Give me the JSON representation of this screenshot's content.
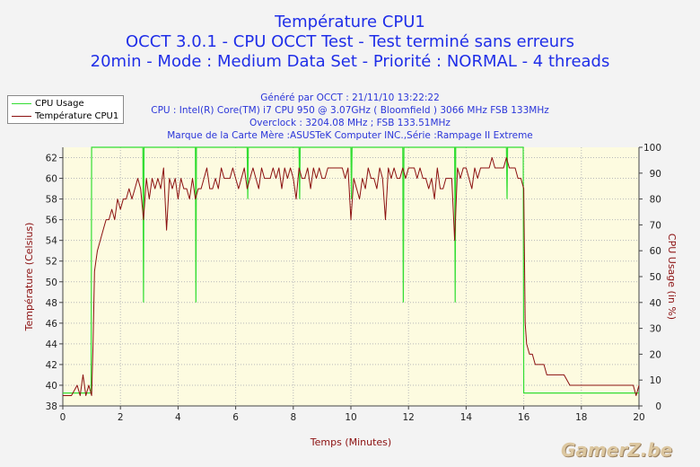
{
  "titles": {
    "line1": "Température CPU1",
    "line2": "OCCT 3.0.1 - CPU OCCT Test - Test terminé sans erreurs",
    "line3": "20min - Mode : Medium Data Set - Priorité : NORMAL - 4 threads"
  },
  "info": {
    "generated": "Généré par OCCT : 21/11/10 13:22:22",
    "cpu": "CPU : Intel(R) Core(TM) i7 CPU 950 @ 3.07GHz ( Bloomfield ) 3066 MHz FSB 133MHz",
    "overclock": "Overclock : 3204.08 MHz ; FSB 133.51MHz",
    "board": "Marque de la Carte Mère :ASUSTeK Computer INC.,Série :Rampage II Extreme"
  },
  "watermark": "GamerZ.be",
  "chart_data": {
    "type": "line",
    "xlabel": "Temps (Minutes)",
    "ylabel_left": "Température (Celsius)",
    "ylabel_right": "CPU Usage (in %)",
    "xlim": [
      0,
      20
    ],
    "ylim_left": [
      38,
      63
    ],
    "ylim_right": [
      0,
      100
    ],
    "x_ticks": [
      "0",
      "2",
      "4",
      "6",
      "8",
      "10",
      "12",
      "14",
      "16",
      "18",
      "20"
    ],
    "y_left_ticks": [
      "38",
      "40",
      "42",
      "44",
      "46",
      "48",
      "50",
      "52",
      "54",
      "56",
      "58",
      "60",
      "62"
    ],
    "y_right_ticks": [
      "0",
      "10",
      "20",
      "30",
      "40",
      "50",
      "60",
      "70",
      "80",
      "90",
      "100"
    ],
    "grid": true,
    "legend_position": "top-left",
    "colors": {
      "cpu_usage": "#33dd33",
      "temperature": "#8b1010"
    },
    "series": [
      {
        "name": "CPU Usage",
        "axis": "right",
        "x": [
          0,
          0.98,
          1.0,
          1.02,
          2.78,
          2.8,
          2.82,
          2.84,
          4.6,
          4.62,
          4.64,
          4.66,
          6.4,
          6.42,
          6.44,
          8.2,
          8.22,
          8.24,
          10.0,
          10.02,
          10.04,
          11.8,
          11.82,
          11.84,
          13.6,
          13.62,
          13.64,
          15.4,
          15.42,
          15.44,
          15.98,
          16.0,
          16.02,
          20.0
        ],
        "y": [
          5,
          5,
          100,
          100,
          100,
          40,
          100,
          100,
          100,
          40,
          100,
          100,
          100,
          80,
          100,
          100,
          80,
          100,
          100,
          80,
          100,
          100,
          40,
          100,
          100,
          40,
          100,
          100,
          80,
          100,
          100,
          5,
          5,
          5
        ]
      },
      {
        "name": "Température CPU1",
        "axis": "left",
        "x": [
          0,
          0.3,
          0.5,
          0.6,
          0.7,
          0.8,
          0.9,
          1.0,
          1.05,
          1.1,
          1.2,
          1.3,
          1.4,
          1.5,
          1.6,
          1.7,
          1.8,
          1.9,
          2.0,
          2.1,
          2.2,
          2.3,
          2.4,
          2.5,
          2.6,
          2.7,
          2.8,
          2.9,
          3.0,
          3.1,
          3.2,
          3.3,
          3.4,
          3.5,
          3.6,
          3.7,
          3.8,
          3.9,
          4.0,
          4.1,
          4.2,
          4.3,
          4.4,
          4.5,
          4.6,
          4.7,
          4.8,
          4.9,
          5.0,
          5.1,
          5.2,
          5.3,
          5.4,
          5.5,
          5.6,
          5.7,
          5.8,
          5.9,
          6.0,
          6.1,
          6.2,
          6.3,
          6.4,
          6.5,
          6.6,
          6.7,
          6.8,
          6.9,
          7.0,
          7.1,
          7.2,
          7.3,
          7.4,
          7.5,
          7.6,
          7.7,
          7.8,
          7.9,
          8.0,
          8.1,
          8.2,
          8.3,
          8.4,
          8.5,
          8.6,
          8.7,
          8.8,
          8.9,
          9.0,
          9.1,
          9.2,
          9.3,
          9.4,
          9.5,
          9.6,
          9.7,
          9.8,
          9.9,
          10.0,
          10.1,
          10.2,
          10.3,
          10.4,
          10.5,
          10.6,
          10.7,
          10.8,
          10.9,
          11.0,
          11.1,
          11.2,
          11.3,
          11.4,
          11.5,
          11.6,
          11.7,
          11.8,
          11.9,
          12.0,
          12.1,
          12.2,
          12.3,
          12.4,
          12.5,
          12.6,
          12.7,
          12.8,
          12.9,
          13.0,
          13.1,
          13.2,
          13.3,
          13.4,
          13.5,
          13.6,
          13.7,
          13.8,
          13.9,
          14.0,
          14.1,
          14.2,
          14.3,
          14.4,
          14.5,
          14.6,
          14.7,
          14.8,
          14.9,
          15.0,
          15.1,
          15.2,
          15.3,
          15.4,
          15.5,
          15.6,
          15.7,
          15.8,
          15.9,
          16.0,
          16.05,
          16.1,
          16.2,
          16.3,
          16.4,
          16.5,
          16.6,
          16.7,
          16.8,
          16.9,
          17.0,
          17.2,
          17.4,
          17.6,
          17.8,
          18.0,
          18.2,
          18.4,
          18.6,
          18.8,
          19.0,
          19.2,
          19.4,
          19.6,
          19.8,
          19.9,
          20.0
        ],
        "y": [
          39,
          39,
          40,
          39,
          41,
          39,
          40,
          39,
          44,
          51,
          53,
          54,
          55,
          56,
          56,
          57,
          56,
          58,
          57,
          58,
          58,
          59,
          58,
          59,
          60,
          59,
          56,
          60,
          58,
          60,
          59,
          60,
          59,
          61,
          55,
          60,
          59,
          60,
          58,
          60,
          59,
          59,
          58,
          60,
          58,
          59,
          59,
          60,
          61,
          59,
          59,
          60,
          59,
          61,
          60,
          60,
          60,
          61,
          60,
          59,
          60,
          61,
          59,
          60,
          61,
          60,
          59,
          61,
          60,
          60,
          60,
          61,
          60,
          61,
          59,
          61,
          60,
          61,
          60,
          58,
          61,
          60,
          60,
          61,
          59,
          61,
          60,
          61,
          60,
          60,
          61,
          61,
          61,
          61,
          61,
          61,
          60,
          61,
          56,
          60,
          59,
          58,
          60,
          59,
          61,
          60,
          60,
          59,
          61,
          60,
          56,
          61,
          60,
          61,
          60,
          60,
          61,
          60,
          61,
          61,
          61,
          60,
          61,
          60,
          60,
          59,
          60,
          58,
          61,
          59,
          59,
          60,
          60,
          60,
          54,
          61,
          60,
          61,
          61,
          60,
          59,
          61,
          60,
          61,
          61,
          61,
          61,
          62,
          61,
          61,
          61,
          61,
          62,
          61,
          61,
          61,
          60,
          60,
          59,
          46,
          44,
          43,
          43,
          42,
          42,
          42,
          42,
          41,
          41,
          41,
          41,
          41,
          40,
          40,
          40,
          40,
          40,
          40,
          40,
          40,
          40,
          40,
          40,
          40,
          39,
          40
        ]
      }
    ]
  }
}
